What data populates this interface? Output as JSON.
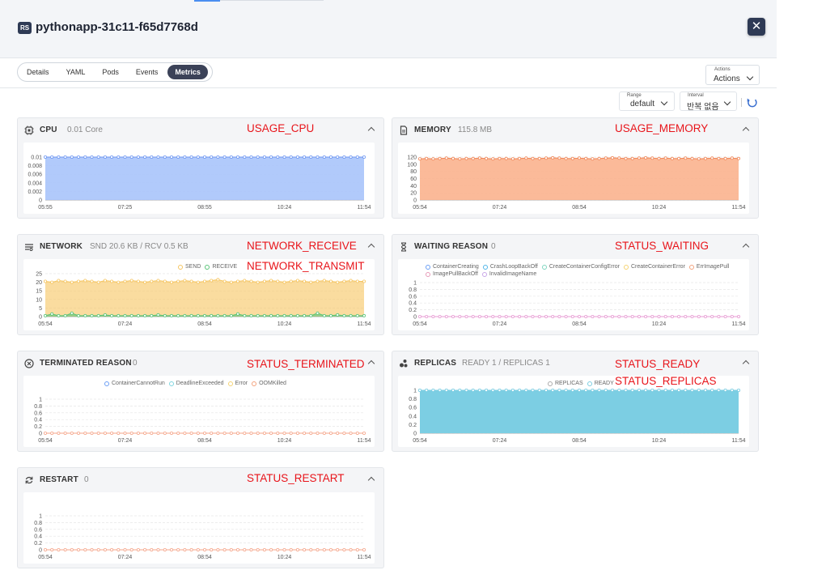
{
  "header": {
    "badge": "RS",
    "title": "pythonapp-31c11-f65d7768d",
    "close_icon": "close-icon"
  },
  "tabs": [
    {
      "label": "Details",
      "active": false
    },
    {
      "label": "YAML",
      "active": false
    },
    {
      "label": "Pods",
      "active": false
    },
    {
      "label": "Events",
      "active": false
    },
    {
      "label": "Metrics",
      "active": true
    }
  ],
  "actions": {
    "label": "Actions",
    "value": "Actions"
  },
  "controls": {
    "range_label": "Range",
    "range_value": "default",
    "interval_label": "Interval",
    "interval_value": "반복 없음",
    "refresh_icon": "refresh-icon"
  },
  "cards": {
    "cpu": {
      "title": "CPU",
      "value": "0.01 Core",
      "icon": "cpu-chip-icon",
      "annotation": "USAGE_CPU"
    },
    "memory": {
      "title": "MEMORY",
      "value": "115.8 MB",
      "icon": "document-icon",
      "annotation": "USAGE_MEMORY"
    },
    "network": {
      "title": "NETWORK",
      "value": "SND 20.6 KB / RCV 0.5 KB",
      "icon": "network-icon",
      "annotation": "NETWORK_RECEIVE",
      "annotation2": "NETWORK_TRANSMIT"
    },
    "waiting": {
      "title": "WAITING REASON",
      "value": "0",
      "icon": "hourglass-icon",
      "annotation": "STATUS_WAITING"
    },
    "terminated": {
      "title": "TERMINATED REASON",
      "value": "0",
      "icon": "circle-x-icon",
      "annotation": "STATUS_TERMINATED"
    },
    "replicas": {
      "title": "REPLICAS",
      "value": "READY 1 / REPLICAS 1",
      "icon": "replicas-icon",
      "annotation": "STATUS_READY",
      "annotation2": "STATUS_REPLICAS"
    },
    "restart": {
      "title": "RESTART",
      "value": "0",
      "icon": "restart-icon",
      "annotation": "STATUS_RESTART"
    }
  },
  "colors": {
    "cpu_fill": "#a9c4fb",
    "cpu_line": "#6e97f2",
    "memory_fill": "#fbb28e",
    "memory_line": "#f08a5d",
    "send": "#f6c55f",
    "receive": "#5cc57a",
    "replicas": "#7bcde2",
    "zero_line": "#f5a58a",
    "waiting_zero_line": "#e79ad3"
  },
  "chart_data": [
    {
      "id": "cpu",
      "type": "area",
      "x_ticks": [
        "05:55",
        "07:25",
        "08:55",
        "10:24",
        "11:54"
      ],
      "y_ticks": [
        "0",
        "0.002",
        "0.004",
        "0.006",
        "0.008",
        "0.01"
      ],
      "ylim": [
        0,
        0.01
      ],
      "series": [
        {
          "values": [
            0.01,
            0.01,
            0.01,
            0.01,
            0.01,
            0.01,
            0.01,
            0.01,
            0.01,
            0.01,
            0.01,
            0.01,
            0.01,
            0.01,
            0.01,
            0.01,
            0.01,
            0.01,
            0.01,
            0.01,
            0.01,
            0.01,
            0.01,
            0.01,
            0.01,
            0.01,
            0.01,
            0.01,
            0.01,
            0.01,
            0.01,
            0.01,
            0.01,
            0.01,
            0.01,
            0.01,
            0.01,
            0.01,
            0.01,
            0.01,
            0.01,
            0.01,
            0.01,
            0.01,
            0.01,
            0.01,
            0.01,
            0.01,
            0.01
          ]
        }
      ]
    },
    {
      "id": "memory",
      "type": "area",
      "x_ticks": [
        "05:54",
        "07:24",
        "08:54",
        "10:24",
        "11:54"
      ],
      "y_ticks": [
        "0",
        "20",
        "40",
        "60",
        "80",
        "100",
        "120"
      ],
      "ylim": [
        0,
        120
      ],
      "series": [
        {
          "values": [
            115,
            116,
            115,
            116,
            117,
            116,
            115,
            116,
            116,
            117,
            116,
            115,
            116,
            116,
            115,
            116,
            117,
            116,
            116,
            117,
            118,
            117,
            116,
            116,
            117,
            116,
            115,
            116,
            117,
            118,
            117,
            116,
            116,
            117,
            118,
            117,
            116,
            117,
            116,
            116,
            117,
            116,
            115,
            116,
            117,
            116,
            116,
            117,
            116
          ]
        }
      ]
    },
    {
      "id": "network",
      "type": "area",
      "x_ticks": [
        "05:54",
        "07:24",
        "08:54",
        "10:24",
        "11:54"
      ],
      "y_ticks": [
        "0",
        "5",
        "10",
        "15",
        "20",
        "25"
      ],
      "ylim": [
        0,
        25
      ],
      "legend": [
        "SEND",
        "RECEIVE"
      ],
      "series": [
        {
          "name": "SEND",
          "values": [
            20.5,
            20,
            21,
            20.5,
            20,
            20.5,
            21,
            20.5,
            20,
            21,
            20.5,
            20,
            20.5,
            21,
            20.5,
            20,
            20.5,
            21,
            20.5,
            20,
            20.5,
            21,
            20.5,
            20,
            20.5,
            21,
            21.5,
            20.5,
            20,
            20.5,
            21,
            20.5,
            20,
            20.5,
            21,
            20.5,
            20,
            20.5,
            21,
            20.5,
            20,
            20.5,
            21,
            20.5,
            20,
            20.5,
            21,
            20.5,
            20.5
          ]
        },
        {
          "name": "RECEIVE",
          "values": [
            0.5,
            1.5,
            0.5,
            0.5,
            2,
            0.5,
            0.5,
            0.5,
            0.5,
            1,
            0.5,
            0.5,
            0.5,
            0.5,
            0.5,
            0.5,
            0.5,
            1,
            0.5,
            0.5,
            0.5,
            0.5,
            0.5,
            0.5,
            0.5,
            0.5,
            0.5,
            0.5,
            0.5,
            1.5,
            0.5,
            0.5,
            0.5,
            0.5,
            0.5,
            0.5,
            0.5,
            0.5,
            0.5,
            0.5,
            0.5,
            2,
            0.5,
            0.5,
            1,
            0.5,
            0.5,
            0.5,
            0.5
          ]
        }
      ]
    },
    {
      "id": "waiting",
      "type": "line",
      "x_ticks": [
        "05:54",
        "07:24",
        "08:54",
        "10:24",
        "11:54"
      ],
      "y_ticks": [
        "0",
        "0.2",
        "0.4",
        "0.6",
        "0.8",
        "1"
      ],
      "ylim": [
        0,
        1
      ],
      "legend": [
        "ContainerCreating",
        "CrashLoopBackOff",
        "CreateContainerConfigError",
        "CreateContainerError",
        "ErrImagePull",
        "ImagePullBackOff",
        "InvalidImageName"
      ],
      "series": [
        {
          "name": "ImagePullBackOff",
          "values": [
            0,
            0,
            0,
            0,
            0,
            0,
            0,
            0,
            0,
            0,
            0,
            0,
            0,
            0,
            0,
            0,
            0,
            0,
            0,
            0,
            0,
            0,
            0,
            0,
            0,
            0,
            0,
            0,
            0,
            0,
            0,
            0,
            0,
            0,
            0,
            0,
            0,
            0,
            0,
            0,
            0,
            0,
            0,
            0,
            0,
            0,
            0,
            0,
            0
          ]
        }
      ]
    },
    {
      "id": "terminated",
      "type": "line",
      "x_ticks": [
        "05:54",
        "07:24",
        "08:54",
        "10:24",
        "11:54"
      ],
      "y_ticks": [
        "0",
        "0.2",
        "0.4",
        "0.6",
        "0.8",
        "1"
      ],
      "ylim": [
        0,
        1
      ],
      "legend": [
        "ContainerCannotRun",
        "DeadlineExceeded",
        "Error",
        "OOMKilled"
      ],
      "series": [
        {
          "name": "OOMKilled",
          "values": [
            0,
            0,
            0,
            0,
            0,
            0,
            0,
            0,
            0,
            0,
            0,
            0,
            0,
            0,
            0,
            0,
            0,
            0,
            0,
            0,
            0,
            0,
            0,
            0,
            0,
            0,
            0,
            0,
            0,
            0,
            0,
            0,
            0,
            0,
            0,
            0,
            0,
            0,
            0,
            0,
            0,
            0,
            0,
            0,
            0,
            0,
            0,
            0,
            0
          ]
        }
      ]
    },
    {
      "id": "replicas",
      "type": "area",
      "x_ticks": [
        "05:54",
        "07:24",
        "08:54",
        "10:24",
        "11:54"
      ],
      "y_ticks": [
        "0",
        "0.2",
        "0.4",
        "0.6",
        "0.8",
        "1"
      ],
      "ylim": [
        0,
        1
      ],
      "legend": [
        "REPLICAS",
        "READY"
      ],
      "series": [
        {
          "name": "REPLICAS",
          "values": [
            1,
            1,
            1,
            1,
            1,
            1,
            1,
            1,
            1,
            1,
            1,
            1,
            1,
            1,
            1,
            1,
            1,
            1,
            1,
            1,
            1,
            1,
            1,
            1,
            1,
            1,
            1,
            1,
            1,
            1,
            1,
            1,
            1,
            1,
            1,
            1,
            1,
            1,
            1,
            1,
            1,
            1,
            1,
            1,
            1,
            1,
            1,
            1,
            1
          ]
        },
        {
          "name": "READY",
          "values": [
            1,
            1,
            1,
            1,
            1,
            1,
            1,
            1,
            1,
            1,
            1,
            1,
            1,
            1,
            1,
            1,
            1,
            1,
            1,
            1,
            1,
            1,
            1,
            1,
            1,
            1,
            1,
            1,
            1,
            1,
            1,
            1,
            1,
            1,
            1,
            1,
            1,
            1,
            1,
            1,
            1,
            1,
            1,
            1,
            1,
            1,
            1,
            1,
            1
          ]
        }
      ]
    },
    {
      "id": "restart",
      "type": "line",
      "x_ticks": [
        "05:54",
        "07:24",
        "08:54",
        "10:24",
        "11:54"
      ],
      "y_ticks": [
        "0",
        "0.2",
        "0.4",
        "0.6",
        "0.8",
        "1"
      ],
      "ylim": [
        0,
        1
      ],
      "series": [
        {
          "values": [
            0,
            0,
            0,
            0,
            0,
            0,
            0,
            0,
            0,
            0,
            0,
            0,
            0,
            0,
            0,
            0,
            0,
            0,
            0,
            0,
            0,
            0,
            0,
            0,
            0,
            0,
            0,
            0,
            0,
            0,
            0,
            0,
            0,
            0,
            0,
            0,
            0,
            0,
            0,
            0,
            0,
            0,
            0,
            0,
            0,
            0,
            0,
            0,
            0
          ]
        }
      ]
    }
  ]
}
